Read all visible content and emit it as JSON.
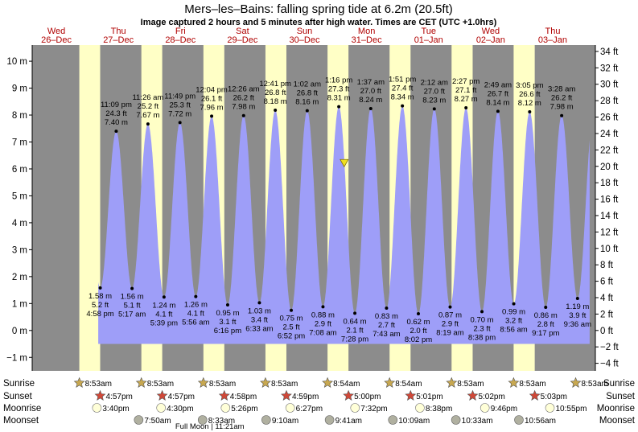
{
  "chart_data": {
    "type": "area",
    "title": "Mers–les–Bains: falling  spring tide at 6.2m (20.5ft)",
    "subtitle": "Image captured 2 hours and 5 minutes after high water. Times are CET (UTC +1.0hrs)",
    "ylabel_left_unit": "m",
    "ylabel_right_unit": "ft",
    "ylim_m": [
      -1.5,
      10.6
    ],
    "yticks_m": [
      "10 m",
      "9 m",
      "8 m",
      "7 m",
      "6 m",
      "5 m",
      "4 m",
      "3 m",
      "2 m",
      "1 m",
      "0 m",
      "−1 m"
    ],
    "yticks_ft": [
      "34 ft",
      "32 ft",
      "30 ft",
      "28 ft",
      "26 ft",
      "24 ft",
      "22 ft",
      "20 ft",
      "18 ft",
      "16 ft",
      "14 ft",
      "12 ft",
      "10 ft",
      "8 ft",
      "6 ft",
      "4 ft",
      "2 ft",
      "0 ft",
      "−2 ft",
      "−4 ft"
    ],
    "days": [
      {
        "dow": "Wed",
        "date": "26–Dec"
      },
      {
        "dow": "Thu",
        "date": "27–Dec"
      },
      {
        "dow": "Fri",
        "date": "28–Dec"
      },
      {
        "dow": "Sat",
        "date": "29–Dec"
      },
      {
        "dow": "Sun",
        "date": "30–Dec"
      },
      {
        "dow": "Mon",
        "date": "31–Dec"
      },
      {
        "dow": "Tue",
        "date": "01–Jan"
      },
      {
        "dow": "Wed",
        "date": "02–Jan"
      },
      {
        "dow": "Thu",
        "date": "03–Jan"
      }
    ],
    "day_start_hours": [
      0,
      24,
      48,
      72,
      96,
      120,
      144,
      168,
      192
    ],
    "time_range_hours": [
      -9.35,
      208.5
    ],
    "daylight": [
      {
        "rise": 8.883,
        "set": 16.95
      },
      {
        "rise": 32.883,
        "set": 40.95
      },
      {
        "rise": 56.883,
        "set": 64.967
      },
      {
        "rise": 80.883,
        "set": 88.983
      },
      {
        "rise": 104.9,
        "set": 113.0
      },
      {
        "rise": 128.9,
        "set": 137.017
      },
      {
        "rise": 152.883,
        "set": 161.033
      },
      {
        "rise": 176.883,
        "set": 185.05
      }
    ],
    "tides": [
      {
        "type": "low",
        "t": 16.967,
        "m": "1.58 m",
        "ft": "5.2 ft",
        "time": "4:58 pm",
        "h": 1.58
      },
      {
        "type": "high",
        "t": 23.15,
        "m": "7.40 m",
        "ft": "24.3 ft",
        "time": "11:09 pm",
        "h": 7.4
      },
      {
        "type": "low",
        "t": 29.283,
        "m": "1.56 m",
        "ft": "5.1 ft",
        "time": "5:17 am",
        "h": 1.56
      },
      {
        "type": "high",
        "t": 35.433,
        "m": "7.67 m",
        "ft": "25.2 ft",
        "time": "11:26 am",
        "h": 7.67
      },
      {
        "type": "low",
        "t": 41.65,
        "m": "1.24 m",
        "ft": "4.1 ft",
        "time": "5:39 pm",
        "h": 1.24
      },
      {
        "type": "high",
        "t": 47.817,
        "m": "7.72 m",
        "ft": "25.3 ft",
        "time": "11:49 pm",
        "h": 7.72
      },
      {
        "type": "low",
        "t": 53.933,
        "m": "1.26 m",
        "ft": "4.1 ft",
        "time": "5:56 am",
        "h": 1.26
      },
      {
        "type": "high",
        "t": 60.067,
        "m": "7.96 m",
        "ft": "26.1 ft",
        "time": "12:04 pm",
        "h": 7.96
      },
      {
        "type": "low",
        "t": 66.267,
        "m": "0.95 m",
        "ft": "3.1 ft",
        "time": "6:16 pm",
        "h": 0.95
      },
      {
        "type": "high",
        "t": 72.433,
        "m": "7.98 m",
        "ft": "26.2 ft",
        "time": "12:26 am",
        "h": 7.98
      },
      {
        "type": "low",
        "t": 78.55,
        "m": "1.03 m",
        "ft": "3.4 ft",
        "time": "6:33 am",
        "h": 1.03
      },
      {
        "type": "high",
        "t": 84.683,
        "m": "8.18 m",
        "ft": "26.8 ft",
        "time": "12:41 pm",
        "h": 8.18
      },
      {
        "type": "low",
        "t": 90.867,
        "m": "0.75 m",
        "ft": "2.5 ft",
        "time": "6:52 pm",
        "h": 0.75
      },
      {
        "type": "high",
        "t": 97.033,
        "m": "8.16 m",
        "ft": "26.8 ft",
        "time": "1:02 am",
        "h": 8.16
      },
      {
        "type": "low",
        "t": 103.133,
        "m": "0.88 m",
        "ft": "2.9 ft",
        "time": "7:08 am",
        "h": 0.88
      },
      {
        "type": "high",
        "t": 109.267,
        "m": "8.31 m",
        "ft": "27.3 ft",
        "time": "1:16 pm",
        "h": 8.31
      },
      {
        "type": "low",
        "t": 115.467,
        "m": "0.64 m",
        "ft": "2.1 ft",
        "time": "7:28 pm",
        "h": 0.64
      },
      {
        "type": "high",
        "t": 121.617,
        "m": "8.24 m",
        "ft": "27.0 ft",
        "time": "1:37 am",
        "h": 8.24
      },
      {
        "type": "low",
        "t": 127.717,
        "m": "0.83 m",
        "ft": "2.7 ft",
        "time": "7:43 am",
        "h": 0.83
      },
      {
        "type": "high",
        "t": 133.85,
        "m": "8.34 m",
        "ft": "27.4 ft",
        "time": "1:51 pm",
        "h": 8.34
      },
      {
        "type": "low",
        "t": 140.033,
        "m": "0.62 m",
        "ft": "2.0 ft",
        "time": "8:02 pm",
        "h": 0.62
      },
      {
        "type": "high",
        "t": 146.2,
        "m": "8.23 m",
        "ft": "27.0 ft",
        "time": "2:12 am",
        "h": 8.23
      },
      {
        "type": "low",
        "t": 152.317,
        "m": "0.87 m",
        "ft": "2.9 ft",
        "time": "8:19 am",
        "h": 0.87
      },
      {
        "type": "high",
        "t": 158.45,
        "m": "8.27 m",
        "ft": "27.1 ft",
        "time": "2:27 pm",
        "h": 8.27
      },
      {
        "type": "low",
        "t": 164.633,
        "m": "0.70 m",
        "ft": "2.3 ft",
        "time": "8:38 pm",
        "h": 0.7
      },
      {
        "type": "high",
        "t": 170.817,
        "m": "8.14 m",
        "ft": "26.7 ft",
        "time": "2:49 am",
        "h": 8.14
      },
      {
        "type": "low",
        "t": 176.933,
        "m": "0.99 m",
        "ft": "3.2 ft",
        "time": "8:56 am",
        "h": 0.99
      },
      {
        "type": "high",
        "t": 183.083,
        "m": "8.12 m",
        "ft": "26.6 ft",
        "time": "3:05 pm",
        "h": 8.12
      },
      {
        "type": "low",
        "t": 189.283,
        "m": "0.86 m",
        "ft": "2.8 ft",
        "time": "9:17 pm",
        "h": 0.86
      },
      {
        "type": "high",
        "t": 195.467,
        "m": "7.98 m",
        "ft": "26.2 ft",
        "time": "3:28 am",
        "h": 7.98
      },
      {
        "type": "low",
        "t": 201.6,
        "m": "1.19 m",
        "ft": "3.9 ft",
        "time": "9:36 am",
        "h": 1.19
      }
    ],
    "current_marker": {
      "t": 111.35,
      "h": 6.2
    }
  },
  "footer": {
    "labels": {
      "sunrise": "Sunrise",
      "sunset": "Sunset",
      "moonrise": "Moonrise",
      "moonset": "Moonset"
    },
    "sunrise": [
      {
        "t": 8.883,
        "text": "8:53am"
      },
      {
        "t": 32.883,
        "text": "8:53am"
      },
      {
        "t": 56.883,
        "text": "8:53am"
      },
      {
        "t": 80.883,
        "text": "8:53am"
      },
      {
        "t": 104.9,
        "text": "8:54am"
      },
      {
        "t": 128.9,
        "text": "8:54am"
      },
      {
        "t": 152.883,
        "text": "8:53am"
      },
      {
        "t": 176.883,
        "text": "8:53am"
      },
      {
        "t": 200.883,
        "text": "8:53am"
      }
    ],
    "sunset": [
      {
        "t": 16.95,
        "text": "4:57pm"
      },
      {
        "t": 40.95,
        "text": "4:57pm"
      },
      {
        "t": 64.967,
        "text": "4:58pm"
      },
      {
        "t": 88.983,
        "text": "4:59pm"
      },
      {
        "t": 113.0,
        "text": "5:00pm"
      },
      {
        "t": 137.017,
        "text": "5:01pm"
      },
      {
        "t": 161.033,
        "text": "5:02pm"
      },
      {
        "t": 185.05,
        "text": "5:03pm"
      }
    ],
    "moonrise": [
      {
        "t": 15.667,
        "text": "3:40pm"
      },
      {
        "t": 40.5,
        "text": "4:30pm"
      },
      {
        "t": 65.433,
        "text": "5:26pm"
      },
      {
        "t": 90.45,
        "text": "6:27pm"
      },
      {
        "t": 115.533,
        "text": "7:32pm"
      },
      {
        "t": 140.633,
        "text": "8:38pm"
      },
      {
        "t": 165.767,
        "text": "9:46pm"
      },
      {
        "t": 190.917,
        "text": "10:55pm"
      }
    ],
    "moonset": [
      {
        "t": 31.833,
        "text": "7:50am"
      },
      {
        "t": 56.55,
        "text": "8:33am"
      },
      {
        "t": 81.167,
        "text": "9:10am"
      },
      {
        "t": 105.683,
        "text": "9:41am"
      },
      {
        "t": 130.15,
        "text": "10:09am"
      },
      {
        "t": 154.55,
        "text": "10:33am"
      },
      {
        "t": 178.933,
        "text": "10:56am"
      }
    ],
    "full_moon": {
      "t": 59.35,
      "text": "Full Moon | 11:21am"
    }
  },
  "colors": {
    "night": "#8c8c8c",
    "day": "#ffffc6",
    "water": "#9e9ef8",
    "day_label": "#b00000",
    "sun_star": "#c8a850",
    "sunset_star": "#d04838",
    "moonrise": "#ffffd8",
    "moonset": "#b0b0a0",
    "marker": "#f0e020"
  }
}
